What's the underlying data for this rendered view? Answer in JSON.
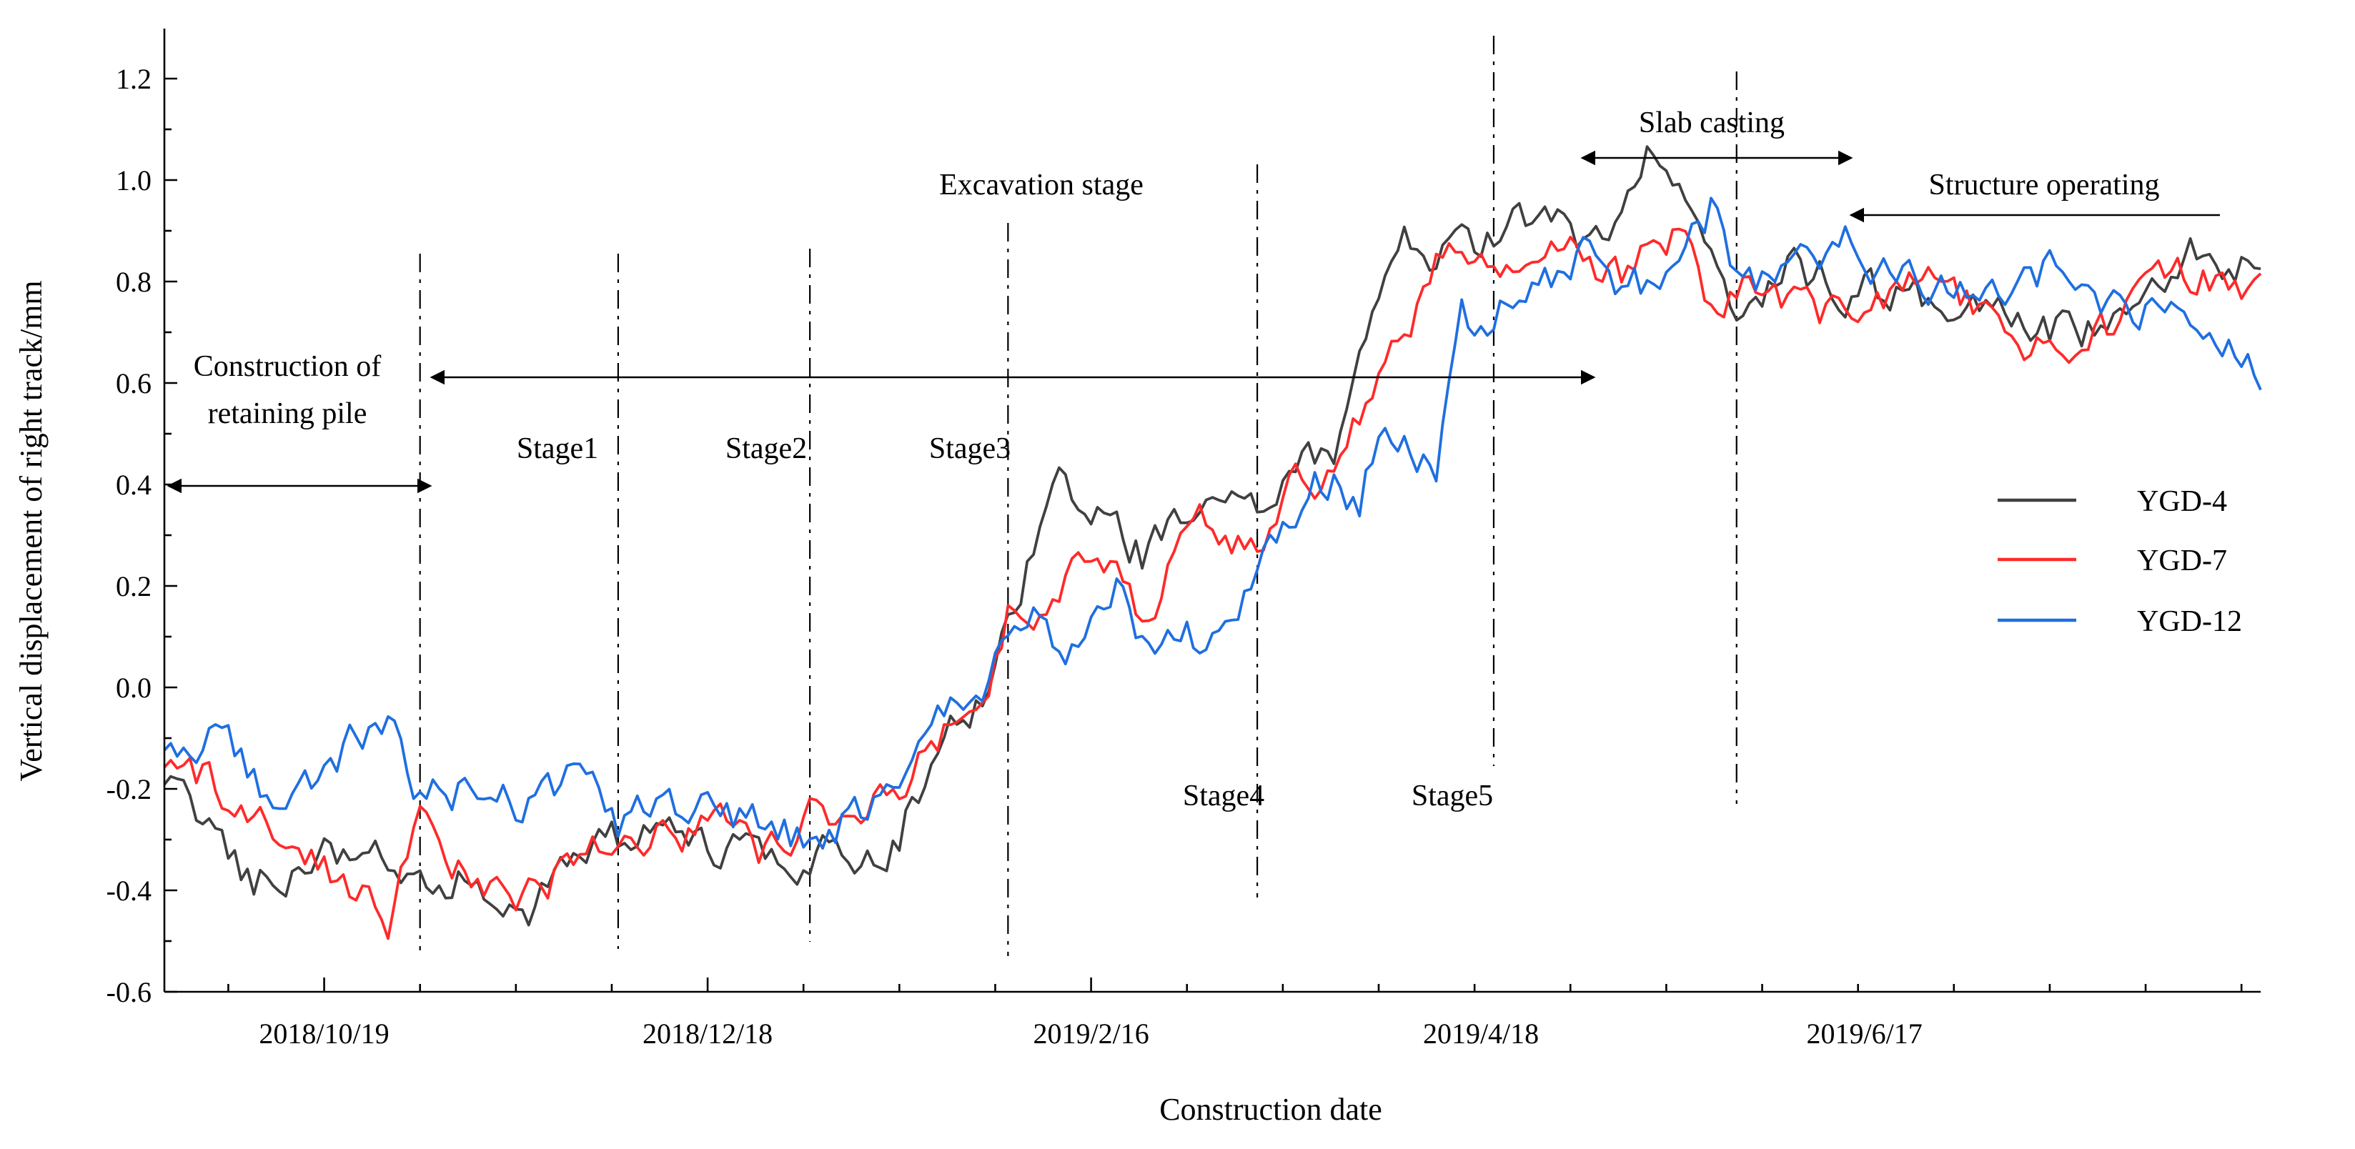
{
  "chart_data": {
    "type": "line",
    "title": "",
    "xlabel": "Construction date",
    "ylabel": "Vertical displacement of right track/mm",
    "ylim": [
      -0.6,
      1.3
    ],
    "y_ticks": [
      -0.6,
      -0.4,
      -0.2,
      0.0,
      0.2,
      0.4,
      0.6,
      0.8,
      1.0,
      1.2
    ],
    "y_tick_labels": [
      "-0.6",
      "-0.4",
      "-0.2",
      "0.0",
      "0.2",
      "0.4",
      "0.6",
      "0.8",
      "1.0",
      "1.2"
    ],
    "x_range": [
      "2018-09-24",
      "2019-08-18"
    ],
    "x_ticks": [
      "2018-10-19",
      "2018-12-18",
      "2019-02-16",
      "2019-04-18",
      "2019-06-17"
    ],
    "x_tick_labels": [
      "2018/10/19",
      "2018/12/18",
      "2019/2/16",
      "2019/4/18",
      "2019/6/17"
    ],
    "grid": false,
    "legend_position": "right",
    "phase_boundaries": [
      "2018-11-03",
      "2018-12-04",
      "2019-01-03",
      "2019-02-03",
      "2019-03-14",
      "2019-04-20",
      "2019-05-28"
    ],
    "annotations": {
      "construction_of_retaining_pile": [
        "Construction of",
        "retaining pile"
      ],
      "excavation_stage": "Excavation stage",
      "slab_casting": "Slab casting",
      "structure_operating": "Structure operating",
      "stages": [
        "Stage1",
        "Stage2",
        "Stage3",
        "Stage4",
        "Stage5"
      ]
    },
    "series": [
      {
        "name": "YGD-4",
        "color": "#404040",
        "key_points": [
          [
            "2018-09-24",
            -0.2
          ],
          [
            "2018-10-01",
            -0.27
          ],
          [
            "2018-10-08",
            -0.38
          ],
          [
            "2018-10-15",
            -0.34
          ],
          [
            "2018-10-22",
            -0.32
          ],
          [
            "2018-10-29",
            -0.33
          ],
          [
            "2018-11-03",
            -0.4
          ],
          [
            "2018-11-12",
            -0.37
          ],
          [
            "2018-11-20",
            -0.42
          ],
          [
            "2018-11-27",
            -0.33
          ],
          [
            "2018-12-04",
            -0.31
          ],
          [
            "2018-12-12",
            -0.3
          ],
          [
            "2018-12-20",
            -0.33
          ],
          [
            "2018-12-27",
            -0.35
          ],
          [
            "2019-01-03",
            -0.32
          ],
          [
            "2019-01-10",
            -0.35
          ],
          [
            "2019-01-17",
            -0.28
          ],
          [
            "2019-01-24",
            -0.1
          ],
          [
            "2019-01-31",
            -0.02
          ],
          [
            "2019-02-03",
            0.12
          ],
          [
            "2019-02-08",
            0.32
          ],
          [
            "2019-02-12",
            0.39
          ],
          [
            "2019-02-16",
            0.36
          ],
          [
            "2019-02-20",
            0.3
          ],
          [
            "2019-02-24",
            0.26
          ],
          [
            "2019-03-01",
            0.31
          ],
          [
            "2019-03-06",
            0.36
          ],
          [
            "2019-03-10",
            0.38
          ],
          [
            "2019-03-14",
            0.34
          ],
          [
            "2019-03-20",
            0.42
          ],
          [
            "2019-03-26",
            0.48
          ],
          [
            "2019-03-30",
            0.65
          ],
          [
            "2019-04-03",
            0.84
          ],
          [
            "2019-04-07",
            0.88
          ],
          [
            "2019-04-11",
            0.83
          ],
          [
            "2019-04-15",
            0.86
          ],
          [
            "2019-04-20",
            0.88
          ],
          [
            "2019-04-27",
            0.93
          ],
          [
            "2019-05-04",
            0.89
          ],
          [
            "2019-05-10",
            0.95
          ],
          [
            "2019-05-15",
            1.07
          ],
          [
            "2019-05-20",
            0.98
          ],
          [
            "2019-05-24",
            0.82
          ],
          [
            "2019-05-28",
            0.76
          ],
          [
            "2019-06-05",
            0.82
          ],
          [
            "2019-06-15",
            0.79
          ],
          [
            "2019-06-25",
            0.77
          ],
          [
            "2019-07-05",
            0.73
          ],
          [
            "2019-07-15",
            0.7
          ],
          [
            "2019-07-25",
            0.71
          ],
          [
            "2019-08-01",
            0.78
          ],
          [
            "2019-08-08",
            0.85
          ],
          [
            "2019-08-18",
            0.85
          ]
        ]
      },
      {
        "name": "YGD-7",
        "color": "#ff2a2a",
        "key_points": [
          [
            "2018-09-24",
            -0.17
          ],
          [
            "2018-10-01",
            -0.18
          ],
          [
            "2018-10-08",
            -0.3
          ],
          [
            "2018-10-15",
            -0.27
          ],
          [
            "2018-10-22",
            -0.38
          ],
          [
            "2018-10-29",
            -0.45
          ],
          [
            "2018-11-03",
            -0.28
          ],
          [
            "2018-11-12",
            -0.4
          ],
          [
            "2018-11-20",
            -0.42
          ],
          [
            "2018-11-27",
            -0.33
          ],
          [
            "2018-12-04",
            -0.31
          ],
          [
            "2018-12-12",
            -0.28
          ],
          [
            "2018-12-20",
            -0.27
          ],
          [
            "2018-12-27",
            -0.32
          ],
          [
            "2019-01-03",
            -0.25
          ],
          [
            "2019-01-10",
            -0.26
          ],
          [
            "2019-01-17",
            -0.2
          ],
          [
            "2019-01-24",
            -0.1
          ],
          [
            "2019-01-31",
            0.02
          ],
          [
            "2019-02-03",
            0.14
          ],
          [
            "2019-02-08",
            0.17
          ],
          [
            "2019-02-12",
            0.2
          ],
          [
            "2019-02-16",
            0.23
          ],
          [
            "2019-02-20",
            0.21
          ],
          [
            "2019-02-24",
            0.15
          ],
          [
            "2019-03-01",
            0.25
          ],
          [
            "2019-03-06",
            0.33
          ],
          [
            "2019-03-10",
            0.25
          ],
          [
            "2019-03-14",
            0.3
          ],
          [
            "2019-03-20",
            0.4
          ],
          [
            "2019-03-26",
            0.44
          ],
          [
            "2019-03-30",
            0.55
          ],
          [
            "2019-04-03",
            0.62
          ],
          [
            "2019-04-07",
            0.73
          ],
          [
            "2019-04-11",
            0.82
          ],
          [
            "2019-04-15",
            0.86
          ],
          [
            "2019-04-20",
            0.8
          ],
          [
            "2019-04-27",
            0.9
          ],
          [
            "2019-05-04",
            0.85
          ],
          [
            "2019-05-10",
            0.82
          ],
          [
            "2019-05-15",
            0.9
          ],
          [
            "2019-05-20",
            0.88
          ],
          [
            "2019-05-24",
            0.72
          ],
          [
            "2019-05-28",
            0.8
          ],
          [
            "2019-06-05",
            0.76
          ],
          [
            "2019-06-15",
            0.72
          ],
          [
            "2019-06-25",
            0.82
          ],
          [
            "2019-07-05",
            0.73
          ],
          [
            "2019-07-15",
            0.68
          ],
          [
            "2019-07-25",
            0.71
          ],
          [
            "2019-08-01",
            0.78
          ],
          [
            "2019-08-08",
            0.8
          ],
          [
            "2019-08-18",
            0.8
          ]
        ]
      },
      {
        "name": "YGD-12",
        "color": "#1f6fe0",
        "key_points": [
          [
            "2018-09-24",
            -0.14
          ],
          [
            "2018-10-01",
            -0.08
          ],
          [
            "2018-10-08",
            -0.19
          ],
          [
            "2018-10-15",
            -0.22
          ],
          [
            "2018-10-22",
            -0.12
          ],
          [
            "2018-10-29",
            -0.09
          ],
          [
            "2018-11-03",
            -0.21
          ],
          [
            "2018-11-12",
            -0.2
          ],
          [
            "2018-11-20",
            -0.23
          ],
          [
            "2018-11-27",
            -0.18
          ],
          [
            "2018-12-04",
            -0.27
          ],
          [
            "2018-12-12",
            -0.24
          ],
          [
            "2018-12-20",
            -0.25
          ],
          [
            "2018-12-27",
            -0.28
          ],
          [
            "2019-01-03",
            -0.3
          ],
          [
            "2019-01-10",
            -0.25
          ],
          [
            "2019-01-17",
            -0.18
          ],
          [
            "2019-01-24",
            -0.07
          ],
          [
            "2019-01-31",
            0.0
          ],
          [
            "2019-02-03",
            0.1
          ],
          [
            "2019-02-08",
            0.13
          ],
          [
            "2019-02-12",
            0.05
          ],
          [
            "2019-02-16",
            0.1
          ],
          [
            "2019-02-20",
            0.23
          ],
          [
            "2019-02-24",
            0.1
          ],
          [
            "2019-03-01",
            0.08
          ],
          [
            "2019-03-06",
            0.1
          ],
          [
            "2019-03-10",
            0.15
          ],
          [
            "2019-03-14",
            0.22
          ],
          [
            "2019-03-20",
            0.35
          ],
          [
            "2019-03-26",
            0.43
          ],
          [
            "2019-03-30",
            0.34
          ],
          [
            "2019-04-03",
            0.55
          ],
          [
            "2019-04-07",
            0.5
          ],
          [
            "2019-04-11",
            0.42
          ],
          [
            "2019-04-15",
            0.7
          ],
          [
            "2019-04-20",
            0.74
          ],
          [
            "2019-04-27",
            0.78
          ],
          [
            "2019-05-04",
            0.84
          ],
          [
            "2019-05-10",
            0.8
          ],
          [
            "2019-05-15",
            0.78
          ],
          [
            "2019-05-20",
            0.82
          ],
          [
            "2019-05-24",
            0.94
          ],
          [
            "2019-05-28",
            0.78
          ],
          [
            "2019-06-05",
            0.82
          ],
          [
            "2019-06-15",
            0.88
          ],
          [
            "2019-06-25",
            0.8
          ],
          [
            "2019-07-05",
            0.78
          ],
          [
            "2019-07-15",
            0.82
          ],
          [
            "2019-07-25",
            0.76
          ],
          [
            "2019-08-01",
            0.74
          ],
          [
            "2019-08-08",
            0.7
          ],
          [
            "2019-08-18",
            0.64
          ]
        ]
      }
    ]
  }
}
